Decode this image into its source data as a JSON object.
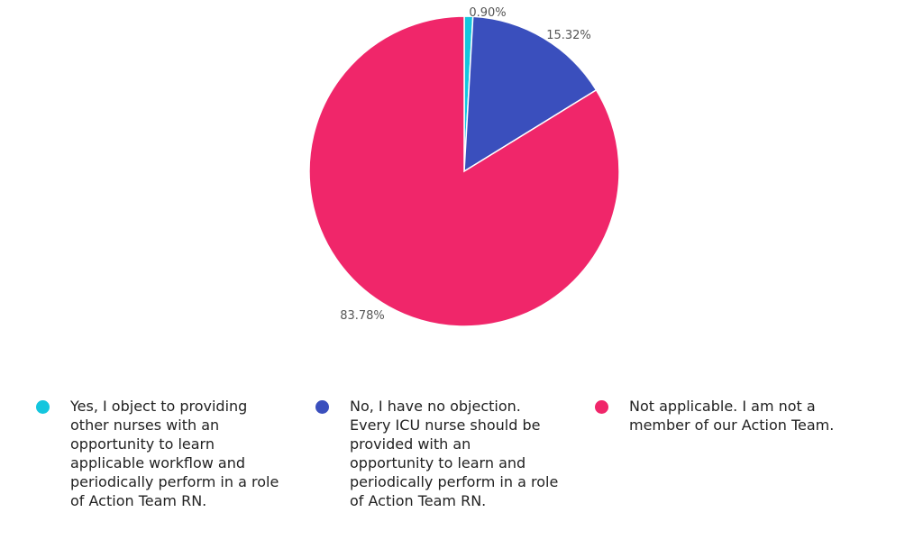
{
  "chart_data": {
    "type": "pie",
    "title": "",
    "legend_position": "bottom",
    "slices": [
      {
        "label": "Yes, I object to providing other nurses with an opportunity to learn applicable workflow and periodically perform in a role of Action Team RN.",
        "value": 0.9,
        "value_label": "0.90%",
        "color": "#14c6de"
      },
      {
        "label": "No, I have no objection. Every ICU nurse should be provided with an opportunity to learn and periodically perform in a role of Action Team RN.",
        "value": 15.32,
        "value_label": "15.32%",
        "color": "#3a4fbd"
      },
      {
        "label": "Not applicable. I am not a member of our Action Team.",
        "value": 83.78,
        "value_label": "83.78%",
        "color": "#f0266a"
      }
    ]
  }
}
